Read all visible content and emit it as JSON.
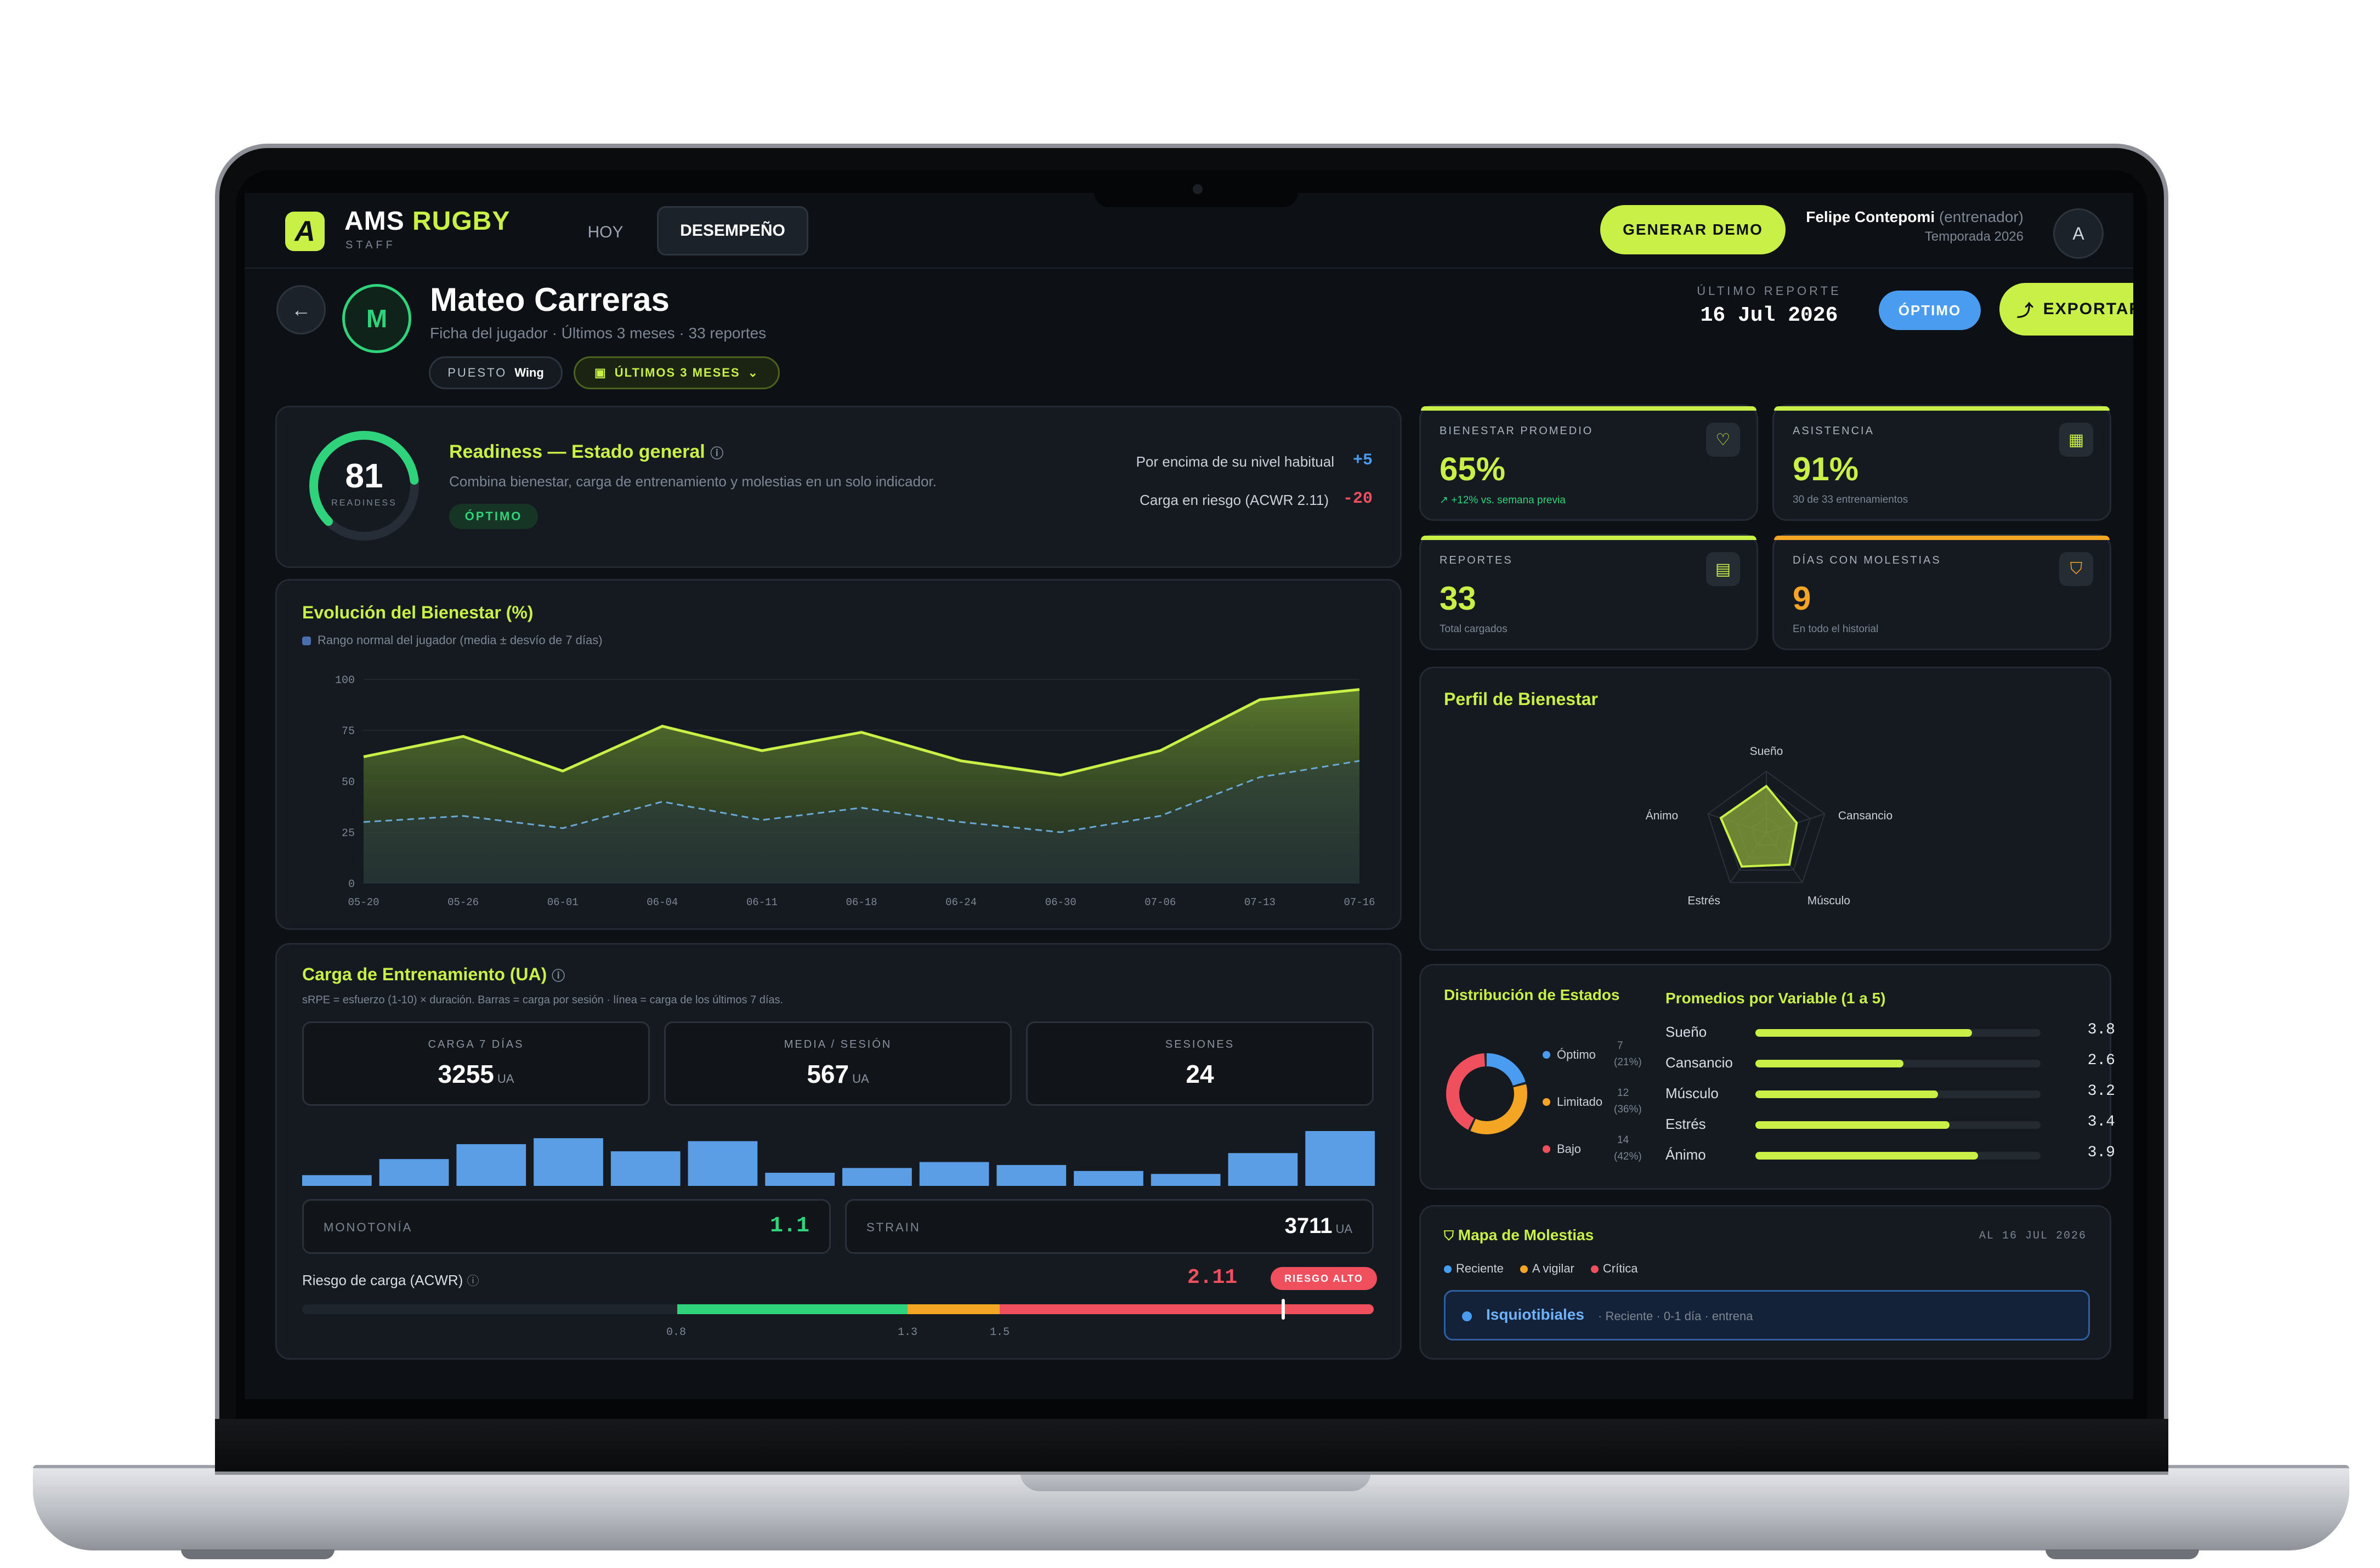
{
  "app": {
    "logo_letter": "A",
    "name_1": "AMS",
    "name_2": "RUGBY",
    "subtitle": "STAFF"
  },
  "nav": {
    "tabs": [
      {
        "label": "HOY",
        "active": false
      },
      {
        "label": "DESEMPEÑO",
        "active": true
      }
    ]
  },
  "header": {
    "demo_button": "GENERAR DEMO",
    "user_name": "Felipe Contepomi",
    "user_role": "(entrenador)",
    "season": "Temporada 2026",
    "avatar": "A"
  },
  "player": {
    "initial": "M",
    "name": "Mateo Carreras",
    "meta": "Ficha del jugador · Últimos 3 meses · 33 reportes",
    "position_label": "PUESTO",
    "position_value": "Wing",
    "period": "ÚLTIMOS 3 MESES",
    "last_report_label": "ÚLTIMO REPORTE",
    "last_report_date": "16 Jul 2026",
    "status": "ÓPTIMO",
    "export": "EXPORTAR"
  },
  "readiness": {
    "score": "81",
    "score_label": "READINESS",
    "score_fraction": 0.81,
    "title": "Readiness — Estado general",
    "desc": "Combina bienestar, carga de entrenamiento y molestias en un solo indicador.",
    "badge": "ÓPTIMO",
    "row1_label": "Por encima de su nivel habitual",
    "row1_value": "+5",
    "row2_label": "Carga en riesgo (ACWR 2.11)",
    "row2_value": "-20"
  },
  "kpis": [
    {
      "label": "BIENESTAR PROMEDIO",
      "value": "65%",
      "sub": "↗ +12% vs. semana previa",
      "icon": "heart-pulse-icon",
      "accent": "#c8f047"
    },
    {
      "label": "ASISTENCIA",
      "value": "91%",
      "sub": "30 de 33 entrenamientos",
      "icon": "calendar-icon",
      "accent": "#c8f047"
    },
    {
      "label": "REPORTES",
      "value": "33",
      "sub": "Total cargados",
      "icon": "clipboard-icon",
      "accent": "#c8f047"
    },
    {
      "label": "DÍAS CON MOLESTIAS",
      "value": "9",
      "sub": "En todo el historial",
      "icon": "shield-icon",
      "accent": "#f5a524"
    }
  ],
  "wellbeing_chart": {
    "title": "Evolución del Bienestar (%)",
    "legend": "Rango normal del jugador (media ± desvío de 7 días)",
    "chart_data": {
      "type": "area",
      "x": [
        "05-20",
        "05-26",
        "06-01",
        "06-04",
        "06-11",
        "06-18",
        "06-24",
        "06-30",
        "07-06",
        "07-13",
        "07-16"
      ],
      "series": [
        {
          "values": [
            62,
            72,
            55,
            77,
            65,
            74,
            60,
            53,
            65,
            90,
            95
          ]
        },
        {
          "values": [
            30,
            33,
            27,
            40,
            31,
            37,
            30,
            25,
            33,
            52,
            60
          ]
        }
      ],
      "yticks": [
        "100",
        "75",
        "50",
        "25",
        "0"
      ],
      "ylim": [
        0,
        100
      ]
    }
  },
  "load": {
    "title": "Carga de Entrenamiento (UA)",
    "desc": "sRPE = esfuerzo (1-10) × duración. Barras = carga por sesión · línea = carga de los últimos 7 días.",
    "stats": [
      {
        "label": "CARGA 7 DÍAS",
        "value": "3255",
        "unit": "UA"
      },
      {
        "label": "MEDIA / SESIÓN",
        "value": "567",
        "unit": "UA"
      },
      {
        "label": "SESIONES",
        "value": "24",
        "unit": ""
      }
    ],
    "chart_data": {
      "type": "bar",
      "values": [
        18,
        45,
        70,
        80,
        58,
        75,
        22,
        30,
        40,
        35,
        25,
        20,
        55,
        92
      ]
    },
    "monotony_label": "MONOTONÍA",
    "monotony_value": "1.1",
    "strain_label": "STRAIN",
    "strain_value": "3711",
    "strain_unit": "UA",
    "acwr_label": "Riesgo de carga (ACWR)",
    "acwr_value": "2.11",
    "acwr_badge": "RIESGO ALTO",
    "acwr_ticks": [
      "0.8",
      "1.3",
      "1.5"
    ]
  },
  "radar": {
    "title": "Perfil de Bienestar",
    "chart_data": {
      "type": "radar",
      "axes": [
        "Sueño",
        "Cansancio",
        "Músculo",
        "Estrés",
        "Ánimo"
      ],
      "values": [
        3.8,
        2.6,
        3.2,
        3.4,
        3.9
      ],
      "max": 5
    }
  },
  "distribution": {
    "title": "Distribución de Estados",
    "chart_data": {
      "type": "pie",
      "slices": [
        {
          "name": "Óptimo",
          "count": "7",
          "pct": "(21%)",
          "value": 21,
          "color": "#4a9cf0"
        },
        {
          "name": "Limitado",
          "count": "12",
          "pct": "(36%)",
          "value": 36,
          "color": "#f5a524"
        },
        {
          "name": "Bajo",
          "count": "14",
          "pct": "(42%)",
          "value": 42,
          "color": "#f0505e"
        }
      ]
    }
  },
  "averages": {
    "title": "Promedios por Variable (1 a 5)",
    "chart_data": {
      "type": "bar",
      "categories": [
        "Sueño",
        "Cansancio",
        "Músculo",
        "Estrés",
        "Ánimo"
      ],
      "values": [
        3.8,
        2.6,
        3.2,
        3.4,
        3.9
      ],
      "labels": [
        "3.8",
        "2.6",
        "3.2",
        "3.4",
        "3.9"
      ],
      "max": 5
    }
  },
  "discomfort": {
    "title": "Mapa de Molestias",
    "date": "AL 16 JUL 2026",
    "legend": [
      {
        "label": "Reciente",
        "color": "#4a9cf0"
      },
      {
        "label": "A vigilar",
        "color": "#f5a524"
      },
      {
        "label": "Crítica",
        "color": "#f0505e"
      }
    ],
    "item_name": "Isquiotibiales",
    "item_meta": "· Reciente · 0-1 día · entrena"
  }
}
